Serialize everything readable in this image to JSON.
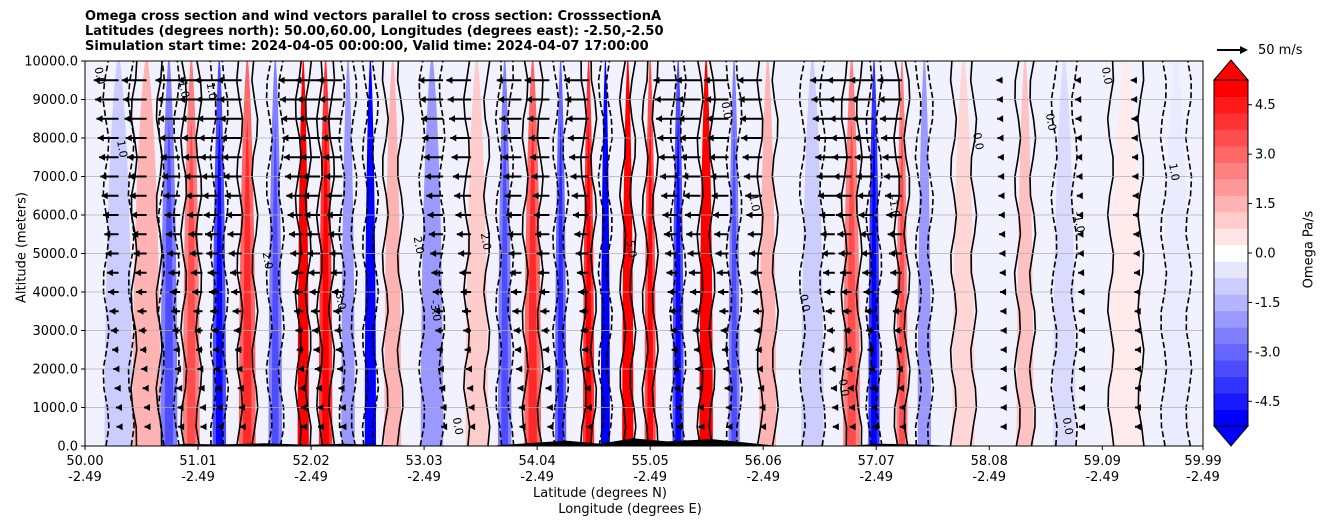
{
  "chart_data": {
    "type": "heatmap",
    "title_lines": [
      "Omega cross section and wind vectors parallel to cross section: CrosssectionA",
      "Latitudes (degrees north): 50.00,60.00, Longitudes (degrees east): -2.50,-2.50",
      "Simulation start time: 2024-04-05 00:00:00, Valid time: 2024-04-07 17:00:00"
    ],
    "ylabel": "Altitude (meters)",
    "xlabel_lat": "Latitude (degrees N)",
    "xlabel_lon": "Longitude (degrees E)",
    "ylim": [
      0,
      10000
    ],
    "xlim": [
      50.0,
      59.99
    ],
    "y_ticks": [
      "0.0",
      "1000.0",
      "2000.0",
      "3000.0",
      "4000.0",
      "5000.0",
      "6000.0",
      "7000.0",
      "8000.0",
      "9000.0",
      "10000.0"
    ],
    "x_ticks": [
      {
        "lat": "50.00",
        "lon": "-2.49"
      },
      {
        "lat": "51.01",
        "lon": "-2.49"
      },
      {
        "lat": "52.02",
        "lon": "-2.49"
      },
      {
        "lat": "53.03",
        "lon": "-2.49"
      },
      {
        "lat": "54.04",
        "lon": "-2.49"
      },
      {
        "lat": "55.05",
        "lon": "-2.49"
      },
      {
        "lat": "56.06",
        "lon": "-2.49"
      },
      {
        "lat": "57.07",
        "lon": "-2.49"
      },
      {
        "lat": "58.08",
        "lon": "-2.49"
      },
      {
        "lat": "59.09",
        "lon": "-2.49"
      },
      {
        "lat": "59.99",
        "lon": "-2.49"
      }
    ],
    "colorbar_label": "Omega Pa/s",
    "colorbar_range": [
      -5.25,
      5.25
    ],
    "colorbar_ticks": [
      "-4.5",
      "-3.0",
      "-1.5",
      "0.0",
      "1.5",
      "3.0",
      "4.5"
    ],
    "colorbar_tick_values": [
      -4.5,
      -3.0,
      -1.5,
      0.0,
      1.5,
      3.0,
      4.5
    ],
    "reference_vector": "50 m/s",
    "omega_bands": [
      {
        "lat": 50.3,
        "omega": -1.0,
        "width": 0.25
      },
      {
        "lat": 50.55,
        "omega": 1.5,
        "width": 0.25
      },
      {
        "lat": 50.75,
        "omega": -2.5,
        "width": 0.15
      },
      {
        "lat": 50.95,
        "omega": 2.5,
        "width": 0.15
      },
      {
        "lat": 51.2,
        "omega": -3.5,
        "width": 0.12
      },
      {
        "lat": 51.45,
        "omega": 3.0,
        "width": 0.15
      },
      {
        "lat": 51.7,
        "omega": -2.5,
        "width": 0.12
      },
      {
        "lat": 51.95,
        "omega": 5.0,
        "width": 0.1
      },
      {
        "lat": 52.15,
        "omega": 4.0,
        "width": 0.12
      },
      {
        "lat": 52.35,
        "omega": -2.0,
        "width": 0.12
      },
      {
        "lat": 52.55,
        "omega": -5.0,
        "width": 0.1
      },
      {
        "lat": 52.75,
        "omega": 1.5,
        "width": 0.15
      },
      {
        "lat": 53.1,
        "omega": -2.0,
        "width": 0.2
      },
      {
        "lat": 53.5,
        "omega": 1.0,
        "width": 0.2
      },
      {
        "lat": 53.75,
        "omega": -2.5,
        "width": 0.12
      },
      {
        "lat": 54.0,
        "omega": 3.0,
        "width": 0.15
      },
      {
        "lat": 54.25,
        "omega": -3.0,
        "width": 0.1
      },
      {
        "lat": 54.5,
        "omega": 4.0,
        "width": 0.1
      },
      {
        "lat": 54.65,
        "omega": -5.0,
        "width": 0.08
      },
      {
        "lat": 54.85,
        "omega": 5.0,
        "width": 0.1
      },
      {
        "lat": 55.05,
        "omega": 3.5,
        "width": 0.1
      },
      {
        "lat": 55.3,
        "omega": -3.5,
        "width": 0.1
      },
      {
        "lat": 55.55,
        "omega": 5.0,
        "width": 0.12
      },
      {
        "lat": 55.8,
        "omega": -2.5,
        "width": 0.1
      },
      {
        "lat": 56.1,
        "omega": 1.5,
        "width": 0.15
      },
      {
        "lat": 56.5,
        "omega": -1.0,
        "width": 0.2
      },
      {
        "lat": 56.85,
        "omega": 2.5,
        "width": 0.15
      },
      {
        "lat": 57.05,
        "omega": -4.0,
        "width": 0.1
      },
      {
        "lat": 57.3,
        "omega": 2.5,
        "width": 0.1
      },
      {
        "lat": 57.5,
        "omega": -2.0,
        "width": 0.12
      },
      {
        "lat": 57.85,
        "omega": 0.8,
        "width": 0.2
      },
      {
        "lat": 58.4,
        "omega": 1.2,
        "width": 0.15
      },
      {
        "lat": 58.75,
        "omega": -0.7,
        "width": 0.2
      },
      {
        "lat": 59.3,
        "omega": 0.4,
        "width": 0.3
      },
      {
        "lat": 59.75,
        "omega": -0.4,
        "width": 0.25
      }
    ],
    "contour_labels": [
      {
        "lat": 50.1,
        "alt": 9600,
        "text": "0.0"
      },
      {
        "lat": 50.3,
        "alt": 7700,
        "text": "1.0"
      },
      {
        "lat": 50.85,
        "alt": 9300,
        "text": "-1.0"
      },
      {
        "lat": 51.1,
        "alt": 9200,
        "text": "1.0"
      },
      {
        "lat": 51.6,
        "alt": 4800,
        "text": "2.0"
      },
      {
        "lat": 52.25,
        "alt": 3800,
        "text": "-3.0"
      },
      {
        "lat": 52.95,
        "alt": 5200,
        "text": "2.0"
      },
      {
        "lat": 53.1,
        "alt": 3500,
        "text": "-3.0"
      },
      {
        "lat": 53.55,
        "alt": 5300,
        "text": "2.0"
      },
      {
        "lat": 54.85,
        "alt": 5100,
        "text": "5.0"
      },
      {
        "lat": 55.7,
        "alt": 8700,
        "text": "0.0"
      },
      {
        "lat": 55.95,
        "alt": 6300,
        "text": "1.0"
      },
      {
        "lat": 56.4,
        "alt": 3700,
        "text": "0.0"
      },
      {
        "lat": 57.2,
        "alt": 6200,
        "text": "-1.0"
      },
      {
        "lat": 57.95,
        "alt": 7900,
        "text": "0.0"
      },
      {
        "lat": 58.6,
        "alt": 8400,
        "text": "0.0"
      },
      {
        "lat": 58.85,
        "alt": 5800,
        "text": "-1.0"
      },
      {
        "lat": 59.1,
        "alt": 9600,
        "text": "0.0"
      },
      {
        "lat": 59.7,
        "alt": 7100,
        "text": "1.0"
      },
      {
        "lat": 58.75,
        "alt": 500,
        "text": "0.0"
      },
      {
        "lat": 56.75,
        "alt": 1500,
        "text": "0.0"
      },
      {
        "lat": 53.3,
        "alt": 500,
        "text": "0.0"
      }
    ],
    "wind_vectors": {
      "altitudes": [
        9500,
        9000,
        8500,
        8000,
        7500,
        7000,
        6500,
        6000,
        5500,
        5000,
        4500,
        4000,
        3500,
        3000,
        2500,
        2000,
        1500,
        1000,
        500
      ],
      "latitudes": [
        50.3,
        50.55,
        50.85,
        51.05,
        51.2,
        51.4,
        51.95,
        52.1,
        52.3,
        53.2,
        53.45,
        53.9,
        54.15,
        54.5,
        55.3,
        55.5,
        55.75,
        56.05,
        56.7,
        56.85,
        57.05,
        57.3,
        58.2,
        58.9,
        59.4
      ]
    }
  }
}
